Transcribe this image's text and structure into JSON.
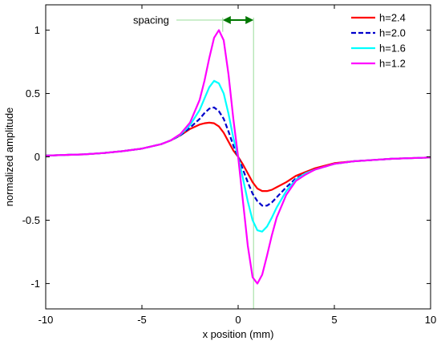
{
  "chart_data": {
    "type": "line",
    "title": "",
    "xlabel": "x position (mm)",
    "ylabel": "normalized amplitude",
    "xlim": [
      -10,
      10
    ],
    "ylim": [
      -1.2,
      1.2
    ],
    "xticks": [
      -10,
      -5,
      0,
      5,
      10
    ],
    "yticks": [
      -1,
      -0.5,
      0,
      0.5,
      1
    ],
    "xtick_labels": [
      "-10",
      "-5",
      "0",
      "5",
      "10"
    ],
    "ytick_labels": [
      "-1",
      "-0.5",
      "0",
      "0.5",
      "1"
    ],
    "grid": false,
    "legend_position": "top-right",
    "x": [
      -10,
      -9,
      -8,
      -7,
      -6,
      -5,
      -4,
      -3.5,
      -3,
      -2.5,
      -2,
      -1.75,
      -1.5,
      -1.25,
      -1,
      -0.75,
      -0.5,
      -0.25,
      0,
      0.25,
      0.5,
      0.75,
      1,
      1.25,
      1.5,
      1.75,
      2,
      2.5,
      3,
      3.5,
      4,
      5,
      6,
      7,
      8,
      9,
      10
    ],
    "series": [
      {
        "name": "h=2.4",
        "color": "#ff0000",
        "dash": "solid",
        "values": [
          0.01,
          0.015,
          0.02,
          0.03,
          0.045,
          0.065,
          0.1,
          0.13,
          0.17,
          0.22,
          0.255,
          0.265,
          0.27,
          0.265,
          0.24,
          0.19,
          0.12,
          0.05,
          0,
          -0.06,
          -0.13,
          -0.2,
          -0.25,
          -0.27,
          -0.27,
          -0.26,
          -0.24,
          -0.2,
          -0.15,
          -0.12,
          -0.09,
          -0.05,
          -0.035,
          -0.025,
          -0.015,
          -0.01,
          -0.005
        ]
      },
      {
        "name": "h=2.0",
        "color": "#0000cc",
        "dash": "dashed",
        "values": [
          0.01,
          0.015,
          0.02,
          0.03,
          0.045,
          0.065,
          0.1,
          0.13,
          0.17,
          0.23,
          0.3,
          0.345,
          0.38,
          0.39,
          0.36,
          0.3,
          0.2,
          0.09,
          0,
          -0.1,
          -0.2,
          -0.29,
          -0.35,
          -0.385,
          -0.385,
          -0.36,
          -0.32,
          -0.24,
          -0.17,
          -0.13,
          -0.1,
          -0.055,
          -0.035,
          -0.025,
          -0.015,
          -0.01,
          -0.005
        ]
      },
      {
        "name": "h=1.6",
        "color": "#00ffff",
        "dash": "solid",
        "values": [
          0.01,
          0.015,
          0.02,
          0.03,
          0.045,
          0.065,
          0.1,
          0.13,
          0.175,
          0.25,
          0.37,
          0.46,
          0.55,
          0.6,
          0.58,
          0.5,
          0.34,
          0.15,
          0,
          -0.17,
          -0.35,
          -0.5,
          -0.58,
          -0.59,
          -0.55,
          -0.48,
          -0.4,
          -0.27,
          -0.18,
          -0.13,
          -0.1,
          -0.055,
          -0.035,
          -0.025,
          -0.015,
          -0.01,
          -0.005
        ]
      },
      {
        "name": "h=1.2",
        "color": "#ff00ff",
        "dash": "solid",
        "values": [
          0.01,
          0.015,
          0.02,
          0.03,
          0.045,
          0.065,
          0.1,
          0.13,
          0.18,
          0.27,
          0.45,
          0.6,
          0.78,
          0.94,
          1.0,
          0.92,
          0.65,
          0.3,
          0,
          -0.35,
          -0.7,
          -0.95,
          -1.0,
          -0.93,
          -0.78,
          -0.62,
          -0.48,
          -0.3,
          -0.19,
          -0.14,
          -0.1,
          -0.055,
          -0.035,
          -0.025,
          -0.015,
          -0.01,
          -0.005
        ]
      }
    ],
    "annotation": {
      "text": "spacing",
      "x_left": -0.8,
      "x_right": 0.8,
      "y": 1.08,
      "color": "#007700",
      "guide_color": "#99dd99"
    }
  }
}
